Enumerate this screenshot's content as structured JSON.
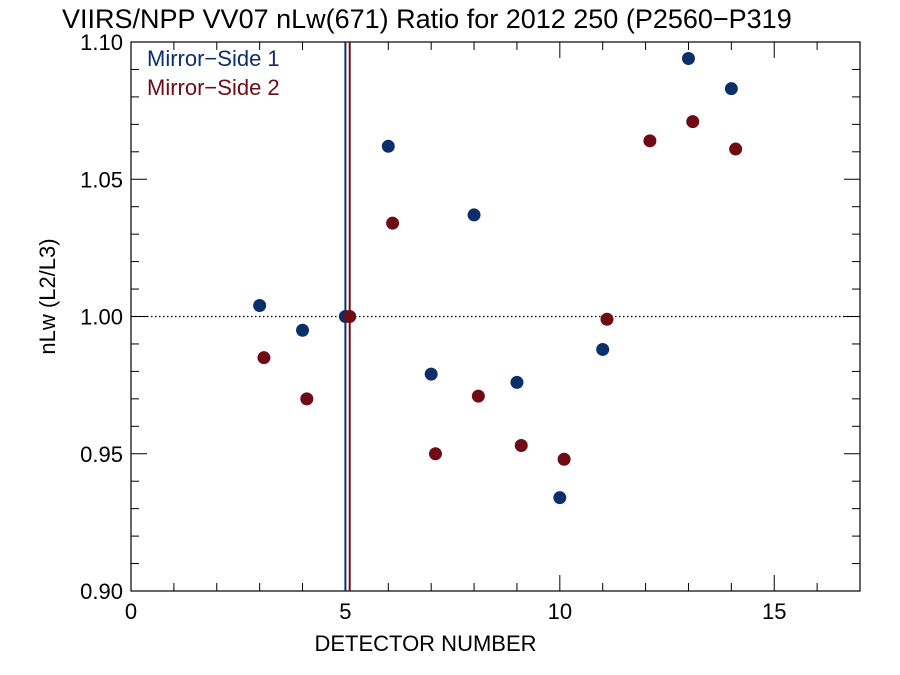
{
  "chart_data": {
    "type": "scatter",
    "title": "VIIRS/NPP VV07 nLw(671) Ratio for 2012 250 (P2560−P319",
    "xlabel": "DETECTOR NUMBER",
    "ylabel": "nLw (L2/L3)",
    "xlim": [
      0,
      17
    ],
    "ylim": [
      0.9,
      1.1
    ],
    "x_ticks": [
      0,
      5,
      10,
      15
    ],
    "x_tick_labels": [
      "0",
      "5",
      "10",
      "15"
    ],
    "y_ticks": [
      0.9,
      0.95,
      1.0,
      1.05,
      1.1
    ],
    "y_tick_labels": [
      "0.90",
      "0.95",
      "1.00",
      "1.05",
      "1.10"
    ],
    "reference_line_y": 1.0,
    "series": [
      {
        "name": "Mirror−Side 1",
        "color": "#0b2f6b",
        "x": [
          3,
          4,
          5,
          6,
          7,
          8,
          9,
          10,
          11,
          13,
          14
        ],
        "y": [
          1.004,
          0.995,
          1.0,
          1.062,
          0.979,
          1.037,
          0.976,
          0.934,
          0.988,
          1.094,
          1.083
        ],
        "vline_x": 5
      },
      {
        "name": "Mirror−Side 2",
        "color": "#6e0b14",
        "x": [
          3.1,
          4.1,
          5.1,
          6.1,
          7.1,
          8.1,
          9.1,
          10.1,
          11.1,
          12.1,
          13.1,
          14.1
        ],
        "y": [
          0.985,
          0.97,
          1.0,
          1.034,
          0.95,
          0.971,
          0.953,
          0.948,
          0.999,
          1.064,
          1.071,
          1.061
        ],
        "vline_x": 5.1
      }
    ],
    "legend_placement": "top-left",
    "grid": false
  }
}
